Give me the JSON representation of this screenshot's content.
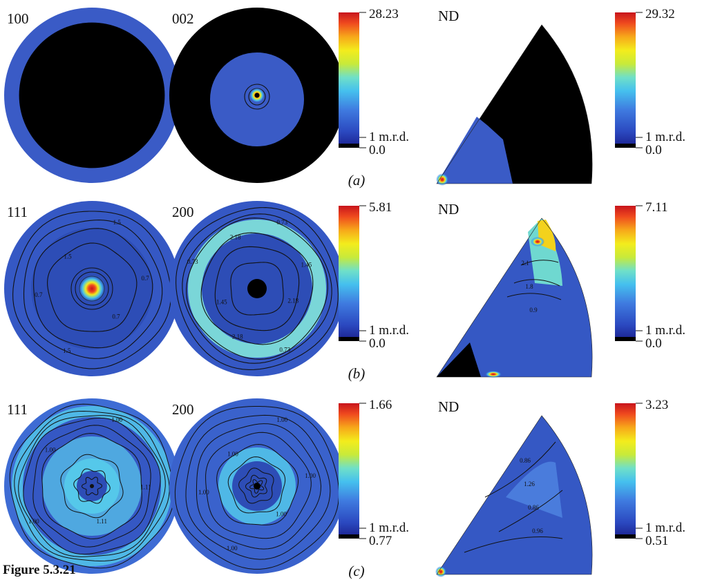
{
  "figure": {
    "caption": "Figure 5.3.21",
    "rows": [
      {
        "label": "(a)",
        "pole_figures": [
          {
            "label": "100",
            "style": "a_100"
          },
          {
            "label": "002",
            "style": "a_002"
          }
        ],
        "pf_scale": {
          "max": "28.23",
          "mid": "1 m.r.d.",
          "min": "0.0"
        },
        "ipf": {
          "label": "ND",
          "style": "a"
        },
        "ipf_scale": {
          "max": "29.32",
          "mid": "1 m.r.d.",
          "min": "0.0"
        }
      },
      {
        "label": "(b)",
        "pole_figures": [
          {
            "label": "111",
            "style": "b_111",
            "contours": [
              "1.5",
              "0.7",
              "0.7",
              "1.5",
              "0.7",
              "1.5"
            ]
          },
          {
            "label": "200",
            "style": "b_200",
            "contours": [
              "0.73",
              "1.45",
              "2.18",
              "0.73",
              "2.18",
              "1.45",
              "0.73",
              "2.18"
            ]
          }
        ],
        "pf_scale": {
          "max": "5.81",
          "mid": "1 m.r.d.",
          "min": "0.0"
        },
        "ipf": {
          "label": "ND",
          "style": "b",
          "contours": [
            "2.1",
            "1.8",
            "0.9"
          ]
        },
        "ipf_scale": {
          "max": "7.11",
          "mid": "1 m.r.d.",
          "min": "0.0"
        }
      },
      {
        "label": "(c)",
        "pole_figures": [
          {
            "label": "111",
            "style": "c_111",
            "contours": [
              "1.00",
              "1.11",
              "1.11",
              "1.00",
              "1.00"
            ]
          },
          {
            "label": "200",
            "style": "c_200",
            "contours": [
              "1.00",
              "1.00",
              "1.00",
              "1.00",
              "1.00",
              "1.00"
            ]
          }
        ],
        "pf_scale": {
          "max": "1.66",
          "mid": "1 m.r.d.",
          "min": "0.77"
        },
        "ipf": {
          "label": "ND",
          "style": "c",
          "contours": [
            "0.86",
            "1.26",
            "0.86",
            "0.96"
          ]
        },
        "ipf_scale": {
          "max": "3.23",
          "mid": "1 m.r.d.",
          "min": "0.51"
        }
      }
    ]
  }
}
